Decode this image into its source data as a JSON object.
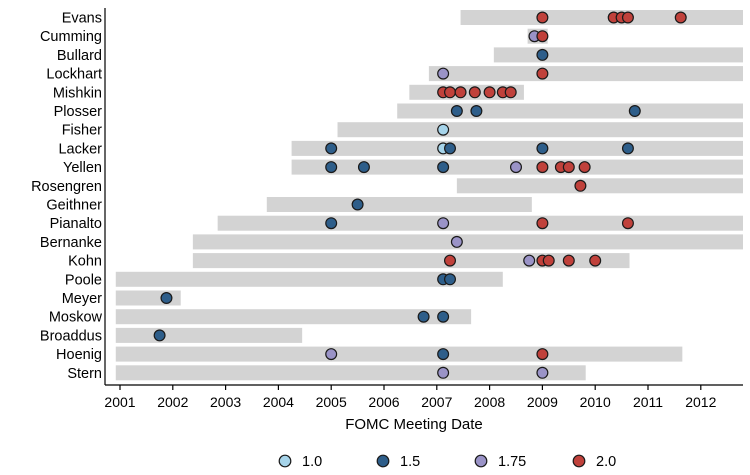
{
  "chart_data": {
    "type": "scatter",
    "xlabel": "FOMC Meeting Date",
    "xlim": [
      2000.92,
      2013.0
    ],
    "x_ticks": [
      "2001",
      "2002",
      "2003",
      "2004",
      "2005",
      "2006",
      "2007",
      "2008",
      "2009",
      "2010",
      "2011",
      "2012"
    ],
    "legend_position": "bottom",
    "legend": [
      {
        "label": "1.0",
        "value": 1.0,
        "color": "#a6d4ea"
      },
      {
        "label": "1.5",
        "value": 1.5,
        "color": "#2e5e8a"
      },
      {
        "label": "1.75",
        "value": 1.75,
        "color": "#9a93c7"
      },
      {
        "label": "2.0",
        "value": 2.0,
        "color": "#c0413b"
      }
    ],
    "bar_color": "#d3d3d3",
    "members": [
      {
        "name": "Evans",
        "tenure": [
          2007.45,
          2013.0
        ],
        "points": [
          {
            "x": 2009.0,
            "v": 2.0
          },
          {
            "x": 2010.35,
            "v": 2.0
          },
          {
            "x": 2010.5,
            "v": 2.0
          },
          {
            "x": 2010.62,
            "v": 2.0
          },
          {
            "x": 2011.62,
            "v": 2.0
          }
        ]
      },
      {
        "name": "Cumming",
        "tenure": [
          2008.72,
          2009.1
        ],
        "points": [
          {
            "x": 2008.85,
            "v": 1.75
          },
          {
            "x": 2009.0,
            "v": 2.0
          }
        ]
      },
      {
        "name": "Bullard",
        "tenure": [
          2008.08,
          2013.0
        ],
        "points": [
          {
            "x": 2009.0,
            "v": 1.5
          }
        ]
      },
      {
        "name": "Lockhart",
        "tenure": [
          2006.85,
          2013.0
        ],
        "points": [
          {
            "x": 2007.12,
            "v": 1.75
          },
          {
            "x": 2009.0,
            "v": 2.0
          }
        ]
      },
      {
        "name": "Mishkin",
        "tenure": [
          2006.48,
          2008.65
        ],
        "points": [
          {
            "x": 2007.12,
            "v": 2.0
          },
          {
            "x": 2007.25,
            "v": 2.0
          },
          {
            "x": 2007.45,
            "v": 2.0
          },
          {
            "x": 2007.72,
            "v": 2.0
          },
          {
            "x": 2008.0,
            "v": 2.0
          },
          {
            "x": 2008.25,
            "v": 2.0
          },
          {
            "x": 2008.4,
            "v": 2.0
          }
        ]
      },
      {
        "name": "Plosser",
        "tenure": [
          2006.25,
          2013.0
        ],
        "points": [
          {
            "x": 2007.38,
            "v": 1.5
          },
          {
            "x": 2007.75,
            "v": 1.5
          },
          {
            "x": 2010.75,
            "v": 1.5
          }
        ]
      },
      {
        "name": "Fisher",
        "tenure": [
          2005.12,
          2013.0
        ],
        "points": [
          {
            "x": 2007.12,
            "v": 1.0
          }
        ]
      },
      {
        "name": "Lacker",
        "tenure": [
          2004.25,
          2013.0
        ],
        "points": [
          {
            "x": 2005.0,
            "v": 1.5
          },
          {
            "x": 2007.12,
            "v": 1.0
          },
          {
            "x": 2007.25,
            "v": 1.5
          },
          {
            "x": 2009.0,
            "v": 1.5
          },
          {
            "x": 2010.62,
            "v": 1.5
          }
        ]
      },
      {
        "name": "Yellen",
        "tenure": [
          2004.25,
          2013.0
        ],
        "points": [
          {
            "x": 2005.0,
            "v": 1.5
          },
          {
            "x": 2005.62,
            "v": 1.5
          },
          {
            "x": 2007.12,
            "v": 1.5
          },
          {
            "x": 2008.5,
            "v": 1.75
          },
          {
            "x": 2009.0,
            "v": 2.0
          },
          {
            "x": 2009.35,
            "v": 2.0
          },
          {
            "x": 2009.5,
            "v": 2.0
          },
          {
            "x": 2009.8,
            "v": 2.0
          }
        ]
      },
      {
        "name": "Rosengren",
        "tenure": [
          2007.38,
          2013.0
        ],
        "points": [
          {
            "x": 2009.72,
            "v": 2.0
          }
        ]
      },
      {
        "name": "Geithner",
        "tenure": [
          2003.78,
          2008.8
        ],
        "points": [
          {
            "x": 2005.5,
            "v": 1.5
          }
        ]
      },
      {
        "name": "Pianalto",
        "tenure": [
          2002.85,
          2013.0
        ],
        "points": [
          {
            "x": 2005.0,
            "v": 1.5
          },
          {
            "x": 2007.12,
            "v": 1.75
          },
          {
            "x": 2009.0,
            "v": 2.0
          },
          {
            "x": 2010.62,
            "v": 2.0
          }
        ]
      },
      {
        "name": "Bernanke",
        "tenure": [
          2002.38,
          2013.0
        ],
        "points": [
          {
            "x": 2007.38,
            "v": 1.75
          }
        ]
      },
      {
        "name": "Kohn",
        "tenure": [
          2002.38,
          2010.65
        ],
        "points": [
          {
            "x": 2007.25,
            "v": 2.0
          },
          {
            "x": 2008.75,
            "v": 1.75
          },
          {
            "x": 2009.0,
            "v": 2.0
          },
          {
            "x": 2009.12,
            "v": 2.0
          },
          {
            "x": 2009.5,
            "v": 2.0
          },
          {
            "x": 2010.0,
            "v": 2.0
          }
        ]
      },
      {
        "name": "Poole",
        "tenure": [
          2000.92,
          2008.25
        ],
        "points": [
          {
            "x": 2007.12,
            "v": 1.5
          },
          {
            "x": 2007.25,
            "v": 1.5
          }
        ]
      },
      {
        "name": "Meyer",
        "tenure": [
          2000.92,
          2002.15
        ],
        "points": [
          {
            "x": 2001.88,
            "v": 1.5
          }
        ]
      },
      {
        "name": "Moskow",
        "tenure": [
          2000.92,
          2007.65
        ],
        "points": [
          {
            "x": 2006.75,
            "v": 1.5
          },
          {
            "x": 2007.12,
            "v": 1.5
          }
        ]
      },
      {
        "name": "Broaddus",
        "tenure": [
          2000.92,
          2004.45
        ],
        "points": [
          {
            "x": 2001.75,
            "v": 1.5
          }
        ]
      },
      {
        "name": "Hoenig",
        "tenure": [
          2000.92,
          2011.65
        ],
        "points": [
          {
            "x": 2005.0,
            "v": 1.75
          },
          {
            "x": 2007.12,
            "v": 1.5
          },
          {
            "x": 2009.0,
            "v": 2.0
          }
        ]
      },
      {
        "name": "Stern",
        "tenure": [
          2000.92,
          2009.82
        ],
        "points": [
          {
            "x": 2007.12,
            "v": 1.75
          },
          {
            "x": 2009.0,
            "v": 1.75
          }
        ]
      }
    ]
  }
}
